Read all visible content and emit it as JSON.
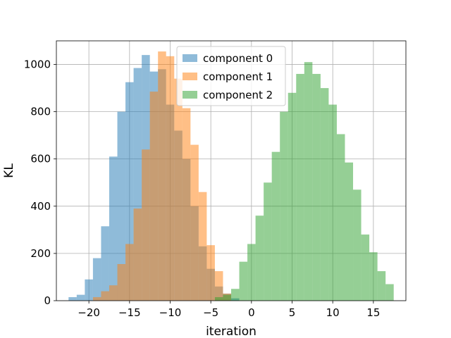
{
  "chart_data": {
    "type": "histogram",
    "xlabel": "iteration",
    "ylabel": "KL",
    "xlim": [
      -24,
      19
    ],
    "ylim": [
      0,
      1100
    ],
    "xticks": [
      -20,
      -15,
      -10,
      -5,
      0,
      5,
      10,
      15
    ],
    "xtick_labels": [
      "−20",
      "−15",
      "−10",
      "−5",
      "0",
      "5",
      "10",
      "15"
    ],
    "yticks": [
      0,
      200,
      400,
      600,
      800,
      1000
    ],
    "ytick_labels": [
      "0",
      "200",
      "400",
      "600",
      "800",
      "1000"
    ],
    "grid": true,
    "legend_position": "top-center",
    "series": [
      {
        "name": "component 0",
        "color": "#1f77b4",
        "opacity": 0.5,
        "bins": [
          {
            "x0": -22.5,
            "x1": -21.5,
            "count": 15
          },
          {
            "x0": -21.5,
            "x1": -20.5,
            "count": 25
          },
          {
            "x0": -20.5,
            "x1": -19.5,
            "count": 90
          },
          {
            "x0": -19.5,
            "x1": -18.5,
            "count": 180
          },
          {
            "x0": -18.5,
            "x1": -17.5,
            "count": 315
          },
          {
            "x0": -17.5,
            "x1": -16.5,
            "count": 610
          },
          {
            "x0": -16.5,
            "x1": -15.5,
            "count": 800
          },
          {
            "x0": -15.5,
            "x1": -14.5,
            "count": 925
          },
          {
            "x0": -14.5,
            "x1": -13.5,
            "count": 985
          },
          {
            "x0": -13.5,
            "x1": -12.5,
            "count": 1040
          },
          {
            "x0": -12.5,
            "x1": -11.5,
            "count": 970
          },
          {
            "x0": -11.5,
            "x1": -10.5,
            "count": 980
          },
          {
            "x0": -10.5,
            "x1": -9.5,
            "count": 830
          },
          {
            "x0": -9.5,
            "x1": -8.5,
            "count": 720
          },
          {
            "x0": -8.5,
            "x1": -7.5,
            "count": 600
          },
          {
            "x0": -7.5,
            "x1": -6.5,
            "count": 400
          },
          {
            "x0": -6.5,
            "x1": -5.5,
            "count": 230
          },
          {
            "x0": -5.5,
            "x1": -4.5,
            "count": 135
          },
          {
            "x0": -4.5,
            "x1": -3.5,
            "count": 60
          },
          {
            "x0": -3.5,
            "x1": -2.5,
            "count": 30
          },
          {
            "x0": -2.5,
            "x1": -1.5,
            "count": 10
          }
        ]
      },
      {
        "name": "component 1",
        "color": "#ff7f0e",
        "opacity": 0.5,
        "bins": [
          {
            "x0": -19.5,
            "x1": -18.5,
            "count": 15
          },
          {
            "x0": -18.5,
            "x1": -17.5,
            "count": 40
          },
          {
            "x0": -17.5,
            "x1": -16.5,
            "count": 65
          },
          {
            "x0": -16.5,
            "x1": -15.5,
            "count": 155
          },
          {
            "x0": -15.5,
            "x1": -14.5,
            "count": 240
          },
          {
            "x0": -14.5,
            "x1": -13.5,
            "count": 390
          },
          {
            "x0": -13.5,
            "x1": -12.5,
            "count": 640
          },
          {
            "x0": -12.5,
            "x1": -11.5,
            "count": 885
          },
          {
            "x0": -11.5,
            "x1": -10.5,
            "count": 1055
          },
          {
            "x0": -10.5,
            "x1": -9.5,
            "count": 1035
          },
          {
            "x0": -9.5,
            "x1": -8.5,
            "count": 940
          },
          {
            "x0": -8.5,
            "x1": -7.5,
            "count": 815
          },
          {
            "x0": -7.5,
            "x1": -6.5,
            "count": 660
          },
          {
            "x0": -6.5,
            "x1": -5.5,
            "count": 460
          },
          {
            "x0": -5.5,
            "x1": -4.5,
            "count": 235
          },
          {
            "x0": -4.5,
            "x1": -3.5,
            "count": 125
          },
          {
            "x0": -3.5,
            "x1": -2.5,
            "count": 30
          }
        ]
      },
      {
        "name": "component 2",
        "color": "#2ca02c",
        "opacity": 0.5,
        "bins": [
          {
            "x0": -4.5,
            "x1": -3.5,
            "count": 15
          },
          {
            "x0": -3.5,
            "x1": -2.5,
            "count": 25
          },
          {
            "x0": -2.5,
            "x1": -1.5,
            "count": 50
          },
          {
            "x0": -1.5,
            "x1": -0.5,
            "count": 165
          },
          {
            "x0": -0.5,
            "x1": 0.5,
            "count": 240
          },
          {
            "x0": 0.5,
            "x1": 1.5,
            "count": 360
          },
          {
            "x0": 1.5,
            "x1": 2.5,
            "count": 500
          },
          {
            "x0": 2.5,
            "x1": 3.5,
            "count": 630
          },
          {
            "x0": 3.5,
            "x1": 4.5,
            "count": 800
          },
          {
            "x0": 4.5,
            "x1": 5.5,
            "count": 880
          },
          {
            "x0": 5.5,
            "x1": 6.5,
            "count": 960
          },
          {
            "x0": 6.5,
            "x1": 7.5,
            "count": 1010
          },
          {
            "x0": 7.5,
            "x1": 8.5,
            "count": 960
          },
          {
            "x0": 8.5,
            "x1": 9.5,
            "count": 900
          },
          {
            "x0": 9.5,
            "x1": 10.5,
            "count": 830
          },
          {
            "x0": 10.5,
            "x1": 11.5,
            "count": 705
          },
          {
            "x0": 11.5,
            "x1": 12.5,
            "count": 585
          },
          {
            "x0": 12.5,
            "x1": 13.5,
            "count": 470
          },
          {
            "x0": 13.5,
            "x1": 14.5,
            "count": 280
          },
          {
            "x0": 14.5,
            "x1": 15.5,
            "count": 205
          },
          {
            "x0": 15.5,
            "x1": 16.5,
            "count": 125
          },
          {
            "x0": 16.5,
            "x1": 17.5,
            "count": 70
          }
        ]
      }
    ]
  }
}
